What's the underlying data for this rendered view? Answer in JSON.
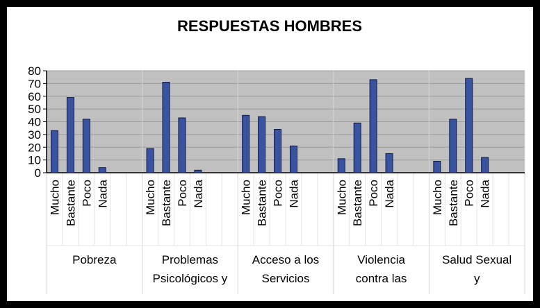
{
  "chart_data": {
    "type": "bar",
    "title": "RESPUESTAS HOMBRES",
    "xlabel": "",
    "ylabel": "",
    "ylim": [
      0,
      80
    ],
    "yticks": [
      0,
      10,
      20,
      30,
      40,
      50,
      60,
      70,
      80
    ],
    "grid": true,
    "legend": false,
    "colors": {
      "bar": "#3a53a0",
      "bar_edge": "#0d1a45",
      "plot_bg": "#c0c0c0",
      "grid": "#9c9c9c"
    },
    "groups": [
      {
        "label_lines": [
          "Pobreza"
        ],
        "categories": [
          "Mucho",
          "Bastante",
          "Poco",
          "Nada"
        ],
        "values": [
          33,
          59,
          42,
          4
        ]
      },
      {
        "label_lines": [
          "Problemas",
          "Psicológicos y"
        ],
        "categories": [
          "Mucho",
          "Bastante",
          "Poco",
          "Nada"
        ],
        "values": [
          19,
          71,
          43,
          2
        ]
      },
      {
        "label_lines": [
          "Acceso a los",
          "Servicios"
        ],
        "categories": [
          "Mucho",
          "Bastante",
          "Poco",
          "Nada"
        ],
        "values": [
          45,
          44,
          34,
          21
        ]
      },
      {
        "label_lines": [
          "Violencia",
          "contra las"
        ],
        "categories": [
          "Mucho",
          "Bastante",
          "Poco",
          "Nada"
        ],
        "values": [
          11,
          39,
          73,
          15
        ]
      },
      {
        "label_lines": [
          "Salud Sexual",
          "y"
        ],
        "categories": [
          "Mucho",
          "Bastante",
          "Poco",
          "Nada"
        ],
        "values": [
          9,
          42,
          74,
          12
        ]
      }
    ]
  }
}
